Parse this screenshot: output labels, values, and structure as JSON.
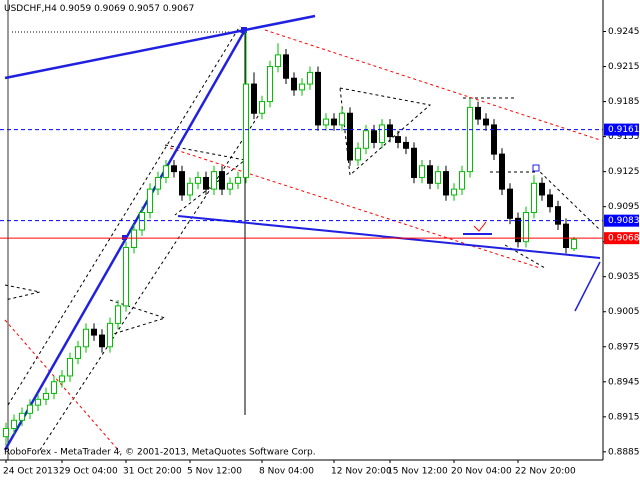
{
  "chart_data": {
    "type": "candlestick",
    "title": "USDCHF,H4",
    "annotation": "RoboForex - MetaTrader 4, © 2001-2013, MetaQuotes Software Corp.",
    "categories": [
      "24 Oct 2013",
      null,
      null,
      null,
      null,
      null,
      null,
      "29 Oct 04:00",
      null,
      null,
      null,
      null,
      null,
      null,
      null,
      "31 Oct 20:00",
      null,
      null,
      null,
      null,
      null,
      null,
      null,
      "5 Nov 12:00",
      null,
      null,
      null,
      null,
      null,
      null,
      null,
      null,
      "8 Nov 04:00",
      null,
      null,
      null,
      null,
      null,
      null,
      null,
      null,
      "12 Nov 20:00",
      null,
      null,
      null,
      null,
      null,
      null,
      "15 Nov 12:00",
      null,
      null,
      null,
      null,
      null,
      null,
      null,
      "20 Nov 04:00",
      null,
      null,
      null,
      null,
      null,
      null,
      null,
      "22 Nov 20:00",
      null,
      null,
      null,
      null,
      null,
      null,
      null
    ],
    "open": [
      0.8898,
      0.8905,
      0.8912,
      0.8918,
      0.8925,
      0.893,
      0.8935,
      0.8945,
      0.895,
      0.8965,
      0.8975,
      0.899,
      0.8985,
      0.8975,
      0.8995,
      0.901,
      0.906,
      0.9075,
      0.909,
      0.911,
      0.912,
      0.913,
      0.9125,
      0.9105,
      0.9115,
      0.912,
      0.911,
      0.9125,
      0.911,
      0.9115,
      0.912,
      0.92,
      0.9175,
      0.9185,
      0.9215,
      0.9225,
      0.9205,
      0.9195,
      0.92,
      0.921,
      0.9165,
      0.917,
      0.9165,
      0.9175,
      0.9135,
      0.9145,
      0.916,
      0.915,
      0.9165,
      0.9155,
      0.915,
      0.9145,
      0.912,
      0.913,
      0.9115,
      0.9125,
      0.9105,
      0.911,
      0.9125,
      0.918,
      0.917,
      0.9165,
      0.914,
      0.911,
      0.9085,
      0.9065,
      0.909,
      0.9115,
      0.9105,
      0.9095,
      0.908,
      0.9059
    ],
    "high": [
      0.891,
      0.8917,
      0.8923,
      0.893,
      0.8935,
      0.894,
      0.895,
      0.8955,
      0.897,
      0.898,
      0.8995,
      0.8995,
      0.899,
      0.9,
      0.9015,
      0.9065,
      0.908,
      0.9095,
      0.9115,
      0.9125,
      0.9135,
      0.9135,
      0.913,
      0.912,
      0.9125,
      0.9125,
      0.913,
      0.913,
      0.912,
      0.9125,
      0.9245,
      0.921,
      0.919,
      0.922,
      0.9235,
      0.923,
      0.921,
      0.9205,
      0.9215,
      0.9215,
      0.9175,
      0.9175,
      0.918,
      0.918,
      0.915,
      0.9165,
      0.9165,
      0.917,
      0.917,
      0.916,
      0.9155,
      0.915,
      0.9135,
      0.9135,
      0.913,
      0.913,
      0.9115,
      0.913,
      0.9188,
      0.9185,
      0.9175,
      0.917,
      0.9145,
      0.9115,
      0.909,
      0.9095,
      0.9122,
      0.912,
      0.911,
      0.91,
      0.9085,
      0.9069
    ],
    "low": [
      0.889,
      0.89,
      0.8907,
      0.8913,
      0.892,
      0.8925,
      0.893,
      0.894,
      0.8945,
      0.896,
      0.897,
      0.898,
      0.897,
      0.897,
      0.899,
      0.9005,
      0.9055,
      0.907,
      0.9085,
      0.9105,
      0.9115,
      0.912,
      0.91,
      0.91,
      0.911,
      0.9105,
      0.9105,
      0.9105,
      0.9105,
      0.911,
      0.9115,
      0.917,
      0.917,
      0.918,
      0.921,
      0.92,
      0.919,
      0.919,
      0.9195,
      0.916,
      0.916,
      0.916,
      0.916,
      0.913,
      0.913,
      0.914,
      0.9145,
      0.9145,
      0.915,
      0.9145,
      0.914,
      0.9115,
      0.9115,
      0.911,
      0.911,
      0.91,
      0.91,
      0.9105,
      0.912,
      0.9165,
      0.916,
      0.9135,
      0.9105,
      0.908,
      0.906,
      0.906,
      0.9085,
      0.91,
      0.909,
      0.9075,
      0.9055,
      0.9057
    ],
    "close": [
      0.8905,
      0.8912,
      0.8918,
      0.8925,
      0.893,
      0.8935,
      0.8945,
      0.895,
      0.8965,
      0.8975,
      0.899,
      0.8985,
      0.8975,
      0.8995,
      0.901,
      0.906,
      0.9075,
      0.909,
      0.911,
      0.912,
      0.913,
      0.9125,
      0.9105,
      0.9115,
      0.912,
      0.911,
      0.9125,
      0.911,
      0.9115,
      0.912,
      0.92,
      0.9175,
      0.9185,
      0.9215,
      0.9225,
      0.9205,
      0.9195,
      0.92,
      0.921,
      0.9165,
      0.917,
      0.9165,
      0.9175,
      0.9135,
      0.9145,
      0.916,
      0.915,
      0.9165,
      0.9155,
      0.915,
      0.9145,
      0.912,
      0.913,
      0.9115,
      0.9125,
      0.9105,
      0.911,
      0.9125,
      0.918,
      0.917,
      0.9165,
      0.914,
      0.911,
      0.9085,
      0.9065,
      0.909,
      0.9115,
      0.9105,
      0.9095,
      0.908,
      0.906,
      0.9067
    ],
    "up_color": "#00c000",
    "down_color": "#000000",
    "ylim": [
      0.8878,
      0.9272
    ],
    "yticks": [
      0.8885,
      0.8915,
      0.8945,
      0.8975,
      0.9005,
      0.9035,
      0.9065,
      0.9095,
      0.9125,
      0.9155,
      0.9185,
      0.9215,
      0.9245
    ],
    "grid": false,
    "levels": [
      {
        "value": 0.9161,
        "color": "#0000ff",
        "style": "dashed"
      },
      {
        "value": 0.9083,
        "color": "#0000ff",
        "style": "dashed"
      },
      {
        "value": 0.9068,
        "color": "#ff0000",
        "style": "solid"
      }
    ]
  }
}
